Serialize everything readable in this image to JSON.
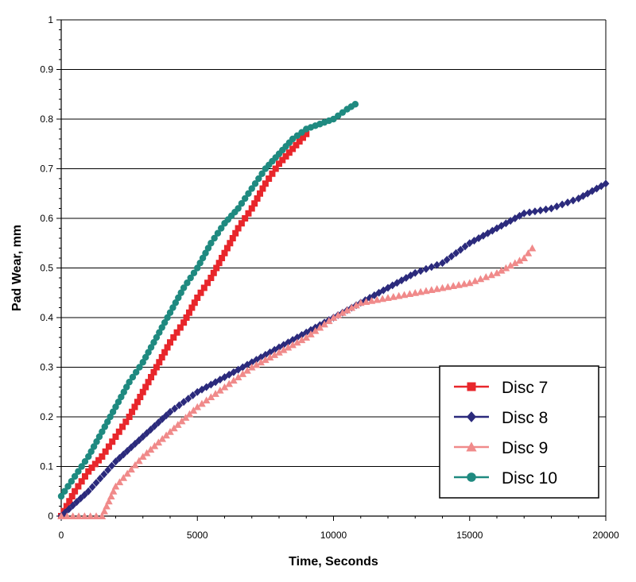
{
  "chart_data": {
    "type": "scatter",
    "title": "",
    "xlabel": "Time,  Seconds",
    "ylabel": "Pad Wear,  mm",
    "xlim": [
      0,
      20000
    ],
    "ylim": [
      0,
      1
    ],
    "xticks": [
      0,
      5000,
      10000,
      15000,
      20000
    ],
    "xtick_labels": [
      "0",
      "5000",
      "10000",
      "15000",
      "20000"
    ],
    "yticks": [
      0,
      0.1,
      0.2,
      0.3,
      0.4,
      0.5,
      0.6,
      0.7,
      0.8,
      0.9,
      1
    ],
    "ytick_labels": [
      "0",
      "0.1",
      "0.2",
      "0.3",
      "0.4",
      "0.5",
      "0.6",
      "0.7",
      "0.8",
      "0.9",
      "1"
    ],
    "grid": "horizontal",
    "legend_position": "bottom-right",
    "series": [
      {
        "name": "Disc 7",
        "color": "#e8262b",
        "marker": "square",
        "x": [
          0,
          500,
          1000,
          1500,
          2000,
          2500,
          3000,
          3500,
          4000,
          4500,
          5000,
          5500,
          6000,
          6500,
          7000,
          7500,
          8000,
          8500,
          9000
        ],
        "y": [
          0.0,
          0.05,
          0.09,
          0.12,
          0.16,
          0.2,
          0.25,
          0.3,
          0.35,
          0.39,
          0.44,
          0.48,
          0.53,
          0.58,
          0.62,
          0.67,
          0.71,
          0.74,
          0.77
        ]
      },
      {
        "name": "Disc 8",
        "color": "#2b2a7c",
        "marker": "diamond",
        "x": [
          0,
          1000,
          2000,
          3000,
          4000,
          5000,
          6000,
          7000,
          8000,
          9000,
          10000,
          11000,
          12000,
          13000,
          14000,
          15000,
          16000,
          17000,
          18000,
          19000,
          20000
        ],
        "y": [
          0.0,
          0.05,
          0.11,
          0.16,
          0.21,
          0.25,
          0.28,
          0.31,
          0.34,
          0.37,
          0.4,
          0.43,
          0.46,
          0.49,
          0.51,
          0.55,
          0.58,
          0.61,
          0.62,
          0.64,
          0.67
        ]
      },
      {
        "name": "Disc 9",
        "color": "#f08a8a",
        "marker": "triangle",
        "x": [
          0,
          1500,
          2000,
          3000,
          4000,
          5000,
          6000,
          7000,
          8000,
          9000,
          10000,
          11000,
          12000,
          13000,
          14000,
          15000,
          16000,
          17000,
          17300
        ],
        "y": [
          0.0,
          0.0,
          0.06,
          0.12,
          0.17,
          0.22,
          0.26,
          0.3,
          0.33,
          0.36,
          0.4,
          0.43,
          0.44,
          0.45,
          0.46,
          0.47,
          0.49,
          0.52,
          0.54
        ]
      },
      {
        "name": "Disc 10",
        "color": "#1f8a80",
        "marker": "circle",
        "x": [
          0,
          500,
          1000,
          1500,
          2000,
          2500,
          3000,
          3500,
          4000,
          4500,
          5000,
          5500,
          6000,
          6500,
          7000,
          7500,
          8000,
          8500,
          9000,
          9500,
          10000,
          10500,
          10800
        ],
        "y": [
          0.04,
          0.08,
          0.12,
          0.17,
          0.22,
          0.27,
          0.31,
          0.36,
          0.41,
          0.46,
          0.5,
          0.55,
          0.59,
          0.62,
          0.66,
          0.7,
          0.73,
          0.76,
          0.78,
          0.79,
          0.8,
          0.82,
          0.83
        ]
      }
    ]
  }
}
